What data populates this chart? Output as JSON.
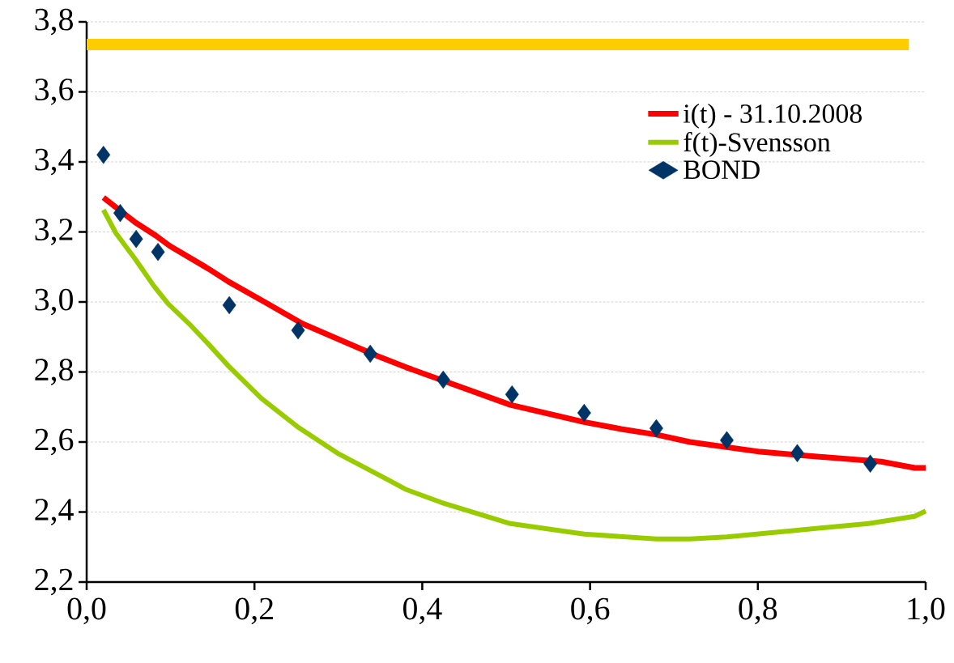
{
  "chart_data": {
    "type": "line",
    "xlim": [
      0,
      1
    ],
    "ylim": [
      2.2,
      3.8
    ],
    "xticks": [
      {
        "value": 0,
        "label": "0,0"
      },
      {
        "value": 0.2,
        "label": "0,2"
      },
      {
        "value": 0.4,
        "label": "0,4"
      },
      {
        "value": 0.6,
        "label": "0,6"
      },
      {
        "value": 0.8,
        "label": "0,8"
      },
      {
        "value": 1,
        "label": "1,0"
      }
    ],
    "yticks": [
      {
        "value": 2.2,
        "label": "2,2"
      },
      {
        "value": 2.4,
        "label": "2,4"
      },
      {
        "value": 2.6,
        "label": "2,6"
      },
      {
        "value": 2.8,
        "label": "2,8"
      },
      {
        "value": 3.0,
        "label": "3,0"
      },
      {
        "value": 3.2,
        "label": "3,2"
      },
      {
        "value": 3.4,
        "label": "3,4"
      },
      {
        "value": 3.6,
        "label": "3,6"
      },
      {
        "value": 3.8,
        "label": "3,8"
      }
    ],
    "grid": "y",
    "legend": "top right",
    "line_style": "solid",
    "series": [
      {
        "color": "#ffcc00",
        "marker": "none",
        "x": [
          0,
          0.98
        ],
        "values": [
          3.735,
          3.735
        ]
      },
      {
        "name": "i(t) - 31.10.2008",
        "color": "#ff0000",
        "marker": "none",
        "x": [
          0.02,
          0.058,
          0.082,
          0.099,
          0.145,
          0.169,
          0.212,
          0.257,
          0.347,
          0.381,
          0.505,
          0.593,
          0.637,
          0.679,
          0.719,
          0.803,
          0.847,
          0.947,
          0.987,
          1.0
        ],
        "values": [
          3.298,
          3.227,
          3.19,
          3.16,
          3.095,
          3.058,
          3.0,
          2.938,
          2.845,
          2.813,
          2.706,
          2.657,
          2.637,
          2.621,
          2.6,
          2.572,
          2.563,
          2.544,
          2.526,
          2.526
        ]
      },
      {
        "name": "f(t)-Svensson",
        "color": "#99cc00",
        "marker": "none",
        "x": [
          0.02,
          0.035,
          0.058,
          0.08,
          0.097,
          0.122,
          0.145,
          0.169,
          0.208,
          0.251,
          0.299,
          0.36,
          0.381,
          0.423,
          0.505,
          0.593,
          0.679,
          0.719,
          0.763,
          0.847,
          0.932,
          0.987,
          1.0
        ],
        "values": [
          3.263,
          3.196,
          3.122,
          3.046,
          2.995,
          2.938,
          2.88,
          2.817,
          2.725,
          2.644,
          2.568,
          2.491,
          2.464,
          2.427,
          2.367,
          2.337,
          2.323,
          2.323,
          2.329,
          2.348,
          2.367,
          2.388,
          2.403
        ]
      },
      {
        "type": "scatter",
        "name": "BOND",
        "color": "#003366",
        "marker": "diamond",
        "x": [
          0.02,
          0.04,
          0.059,
          0.085,
          0.17,
          0.252,
          0.338,
          0.425,
          0.507,
          0.593,
          0.679,
          0.763,
          0.847,
          0.934
        ],
        "values": [
          3.42,
          3.254,
          3.18,
          3.143,
          2.991,
          2.919,
          2.852,
          2.778,
          2.736,
          2.683,
          2.639,
          2.605,
          2.568,
          2.538
        ]
      }
    ]
  }
}
